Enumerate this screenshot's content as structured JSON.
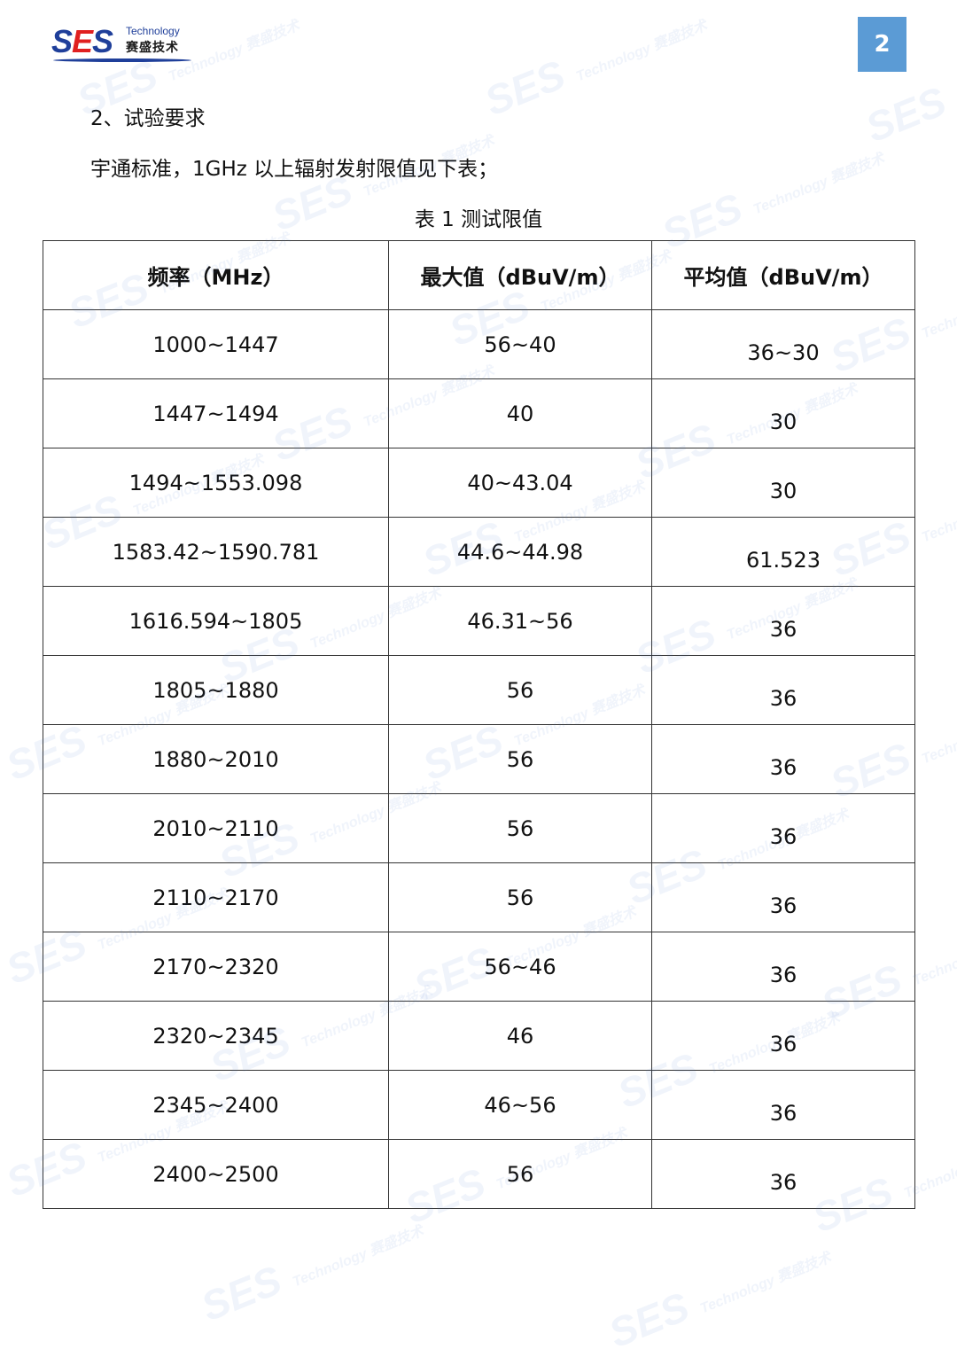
{
  "logo": {
    "brand": "SES",
    "tagline": "Technology",
    "cn_name": "赛盛技术"
  },
  "page_number": "2",
  "section_heading": "2、试验要求",
  "paragraph": "宇通标准，1GHz 以上辐射发射限值见下表；",
  "table_caption": "表 1 测试限值",
  "table": {
    "headers": [
      "频率（MHz）",
      "最大值（dBuV/m）",
      "平均值（dBuV/m）"
    ],
    "rows": [
      [
        "1000~1447",
        "56~40",
        "36~30"
      ],
      [
        "1447~1494",
        "40",
        "30"
      ],
      [
        "1494~1553.098",
        "40~43.04",
        "30"
      ],
      [
        "1583.42~1590.781",
        "44.6~44.98",
        "61.523"
      ],
      [
        "1616.594~1805",
        "46.31~56",
        "36"
      ],
      [
        "1805~1880",
        "56",
        "36"
      ],
      [
        "1880~2010",
        "56",
        "36"
      ],
      [
        "2010~2110",
        "56",
        "36"
      ],
      [
        "2110~2170",
        "56",
        "36"
      ],
      [
        "2170~2320",
        "56~46",
        "36"
      ],
      [
        "2320~2345",
        "46",
        "36"
      ],
      [
        "2345~2400",
        "46~56",
        "36"
      ],
      [
        "2400~2500",
        "56",
        "36"
      ]
    ]
  },
  "watermark": "SES Technology 赛盛技术",
  "colors": {
    "badge": "#5b9bd5",
    "brand_blue": "#1f3f9a",
    "brand_red": "#e02020"
  }
}
